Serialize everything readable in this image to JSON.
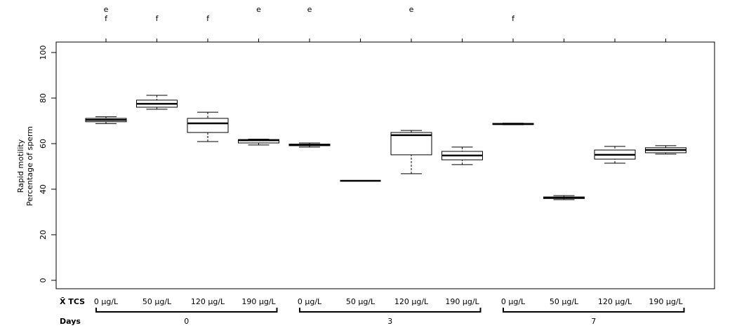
{
  "chart_data": {
    "type": "box",
    "y_label_lines": [
      "Rapid motility",
      "Percentage of sperm"
    ],
    "x_label": "X̄ TCS",
    "group_label": "Days",
    "categories": [
      "0 µg/L",
      "50 µg/L",
      "120 µg/L",
      "190 µg/L",
      "0 µg/L",
      "50 µg/L",
      "120 µg/L",
      "190 µg/L",
      "0 µg/L",
      "50 µg/L",
      "120 µg/L",
      "190 µg/L"
    ],
    "days": [
      "0",
      "0",
      "0",
      "0",
      "3",
      "3",
      "3",
      "3",
      "7",
      "7",
      "7",
      "7"
    ],
    "min": [
      68.8,
      75.1,
      60.9,
      59.4,
      58.5,
      43.7,
      46.8,
      50.8,
      68.3,
      35.4,
      51.4,
      55.4
    ],
    "q1": [
      69.6,
      76.0,
      64.9,
      60.3,
      59.1,
      43.7,
      55.1,
      52.9,
      68.4,
      35.9,
      53.2,
      56.0
    ],
    "median": [
      70.4,
      77.5,
      68.9,
      61.5,
      59.4,
      43.7,
      63.7,
      54.8,
      68.6,
      36.3,
      55.1,
      57.2
    ],
    "q3": [
      71.1,
      79.1,
      71.1,
      61.8,
      59.8,
      43.7,
      64.9,
      56.6,
      68.9,
      36.6,
      57.2,
      58.2
    ],
    "max": [
      71.8,
      81.2,
      73.8,
      62.0,
      60.3,
      43.7,
      65.8,
      58.5,
      69.0,
      37.2,
      58.8,
      59.1
    ],
    "letters_top": [
      "e",
      null,
      null,
      "e",
      "e",
      null,
      "e",
      null,
      null,
      null,
      null,
      null
    ],
    "letters_bottom": [
      "f",
      "f",
      "f",
      null,
      null,
      null,
      null,
      null,
      "f",
      null,
      null,
      null
    ],
    "color": "#000000",
    "ylim": [
      -3.7,
      104.6
    ],
    "yticks": [
      0,
      20,
      40,
      60,
      80,
      100
    ]
  }
}
